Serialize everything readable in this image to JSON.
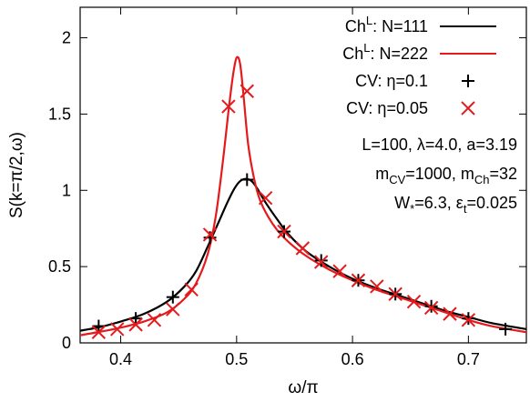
{
  "chart_data": {
    "type": "line",
    "xlabel": "ω/π",
    "ylabel": "S(k=π/2,ω)",
    "xlim": [
      0.365,
      0.75
    ],
    "ylim": [
      0,
      2.2
    ],
    "x_ticks": [
      0.4,
      0.5,
      0.6,
      0.7
    ],
    "x_tick_labels": [
      "0.4",
      "0.5",
      "0.6",
      "0.7"
    ],
    "y_ticks": [
      0,
      0.5,
      1,
      1.5,
      2
    ],
    "y_tick_labels": [
      "0",
      "0.5",
      "1",
      "1.5",
      "2"
    ],
    "grid": false,
    "legend_position": "top-right",
    "series": [
      {
        "name_parts": {
          "base": "Ch",
          "sup": "L",
          "rest": ": N=111"
        },
        "style": "line",
        "color": "#000000",
        "x": [
          0.365,
          0.38,
          0.4,
          0.42,
          0.44,
          0.455,
          0.465,
          0.475,
          0.485,
          0.492,
          0.498,
          0.503,
          0.508,
          0.513,
          0.518,
          0.525,
          0.535,
          0.545,
          0.56,
          0.58,
          0.6,
          0.62,
          0.64,
          0.66,
          0.68,
          0.7,
          0.72,
          0.75
        ],
        "y": [
          0.08,
          0.1,
          0.14,
          0.19,
          0.27,
          0.37,
          0.47,
          0.63,
          0.8,
          0.92,
          1.01,
          1.06,
          1.075,
          1.06,
          1.01,
          0.92,
          0.81,
          0.71,
          0.6,
          0.5,
          0.42,
          0.36,
          0.31,
          0.26,
          0.21,
          0.17,
          0.13,
          0.09
        ]
      },
      {
        "name_parts": {
          "base": "Ch",
          "sup": "L",
          "rest": ": N=222"
        },
        "style": "line",
        "color": "#e41a1c",
        "x": [
          0.365,
          0.38,
          0.4,
          0.42,
          0.44,
          0.455,
          0.465,
          0.475,
          0.482,
          0.488,
          0.493,
          0.497,
          0.5,
          0.503,
          0.506,
          0.51,
          0.515,
          0.52,
          0.527,
          0.535,
          0.545,
          0.56,
          0.58,
          0.6,
          0.62,
          0.64,
          0.66,
          0.68,
          0.7,
          0.72,
          0.75
        ],
        "y": [
          0.05,
          0.07,
          0.1,
          0.14,
          0.2,
          0.29,
          0.39,
          0.58,
          0.83,
          1.18,
          1.52,
          1.76,
          1.87,
          1.83,
          1.62,
          1.3,
          1.08,
          0.94,
          0.83,
          0.74,
          0.66,
          0.57,
          0.48,
          0.41,
          0.35,
          0.3,
          0.25,
          0.2,
          0.15,
          0.11,
          0.07
        ]
      },
      {
        "name_parts": {
          "base": "CV: η=0.1",
          "sup": "",
          "rest": ""
        },
        "style": "plus",
        "color": "#000000",
        "x": [
          0.381,
          0.413,
          0.445,
          0.477,
          0.509,
          0.541,
          0.573,
          0.605,
          0.637,
          0.668,
          0.7,
          0.732
        ],
        "y": [
          0.11,
          0.16,
          0.3,
          0.69,
          1.07,
          0.73,
          0.54,
          0.41,
          0.32,
          0.24,
          0.16,
          0.09
        ]
      },
      {
        "name_parts": {
          "base": "CV: η=0.05",
          "sup": "",
          "rest": ""
        },
        "style": "cross",
        "color": "#e41a1c",
        "x": [
          0.381,
          0.397,
          0.413,
          0.429,
          0.445,
          0.461,
          0.477,
          0.493,
          0.509,
          0.525,
          0.541,
          0.557,
          0.573,
          0.589,
          0.605,
          0.621,
          0.637,
          0.653,
          0.668,
          0.684,
          0.7
        ],
        "y": [
          0.07,
          0.09,
          0.12,
          0.15,
          0.22,
          0.35,
          0.71,
          1.55,
          1.65,
          0.95,
          0.73,
          0.62,
          0.53,
          0.47,
          0.41,
          0.37,
          0.32,
          0.27,
          0.23,
          0.19,
          0.15
        ]
      }
    ],
    "annotations": {
      "line1": "L=100, λ=4.0, a=3.19",
      "line2": {
        "m1_base": "m",
        "m1_sub": "CV",
        "m1_val": "=1000, ",
        "m2_base": "m",
        "m2_sub": "Ch",
        "m2_val": "=32"
      },
      "line3": {
        "w_base": "W",
        "w_sub": "*",
        "w_val": "=6.3, ",
        "e_base": "ε",
        "e_sub": "t",
        "e_val": "=0.025"
      }
    }
  }
}
